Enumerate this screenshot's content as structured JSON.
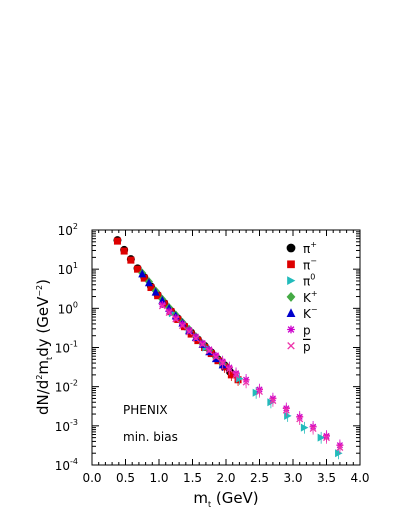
{
  "chart_data": {
    "type": "scatter",
    "title": "",
    "xlabel_main": "m",
    "xlabel_sub": "t",
    "xlabel_unit": " (GeV)",
    "ylabel_base": "dN/d",
    "ylabel_sup": "2",
    "ylabel_mid": "m",
    "ylabel_sub": "t",
    "ylabel_dy": "dy (GeV",
    "ylabel_exp": "−2",
    "ylabel_end": ")",
    "x_log": false,
    "y_log": true,
    "xlim": [
      0.0,
      4.0
    ],
    "ylim": [
      0.0001,
      100
    ],
    "x_ticks": [
      "0.0",
      "0.5",
      "1.0",
      "1.5",
      "2.0",
      "2.5",
      "3.0",
      "3.5",
      "4.0"
    ],
    "y_ticks": [
      {
        "base": "10",
        "exp": "2",
        "value": 100
      },
      {
        "base": "10",
        "exp": "1",
        "value": 10
      },
      {
        "base": "10",
        "exp": "0",
        "value": 1
      },
      {
        "base": "10",
        "exp": "-1",
        "value": 0.1
      },
      {
        "base": "10",
        "exp": "-2",
        "value": 0.01
      },
      {
        "base": "10",
        "exp": "-3",
        "value": 0.001
      },
      {
        "base": "10",
        "exp": "-4",
        "value": 0.0001
      }
    ],
    "annotations": [
      "PHENIX",
      "min. bias"
    ],
    "legend_position": "top-right",
    "series": [
      {
        "name": "π",
        "name_sup": "+",
        "marker": "circle",
        "color": "#000000",
        "x": [
          0.38,
          0.48,
          0.58,
          0.68,
          0.78,
          0.88,
          0.98,
          1.08,
          1.18,
          1.28,
          1.38,
          1.48,
          1.58,
          1.68,
          1.78,
          1.88,
          1.98,
          2.06
        ],
        "y": [
          55,
          31,
          18,
          10.5,
          6.2,
          3.6,
          2.2,
          1.35,
          0.85,
          0.55,
          0.35,
          0.24,
          0.16,
          0.11,
          0.075,
          0.05,
          0.035,
          0.024
        ]
      },
      {
        "name": "π",
        "name_sup": "−",
        "marker": "square",
        "color": "#dd0000",
        "x": [
          0.38,
          0.48,
          0.58,
          0.68,
          0.78,
          0.88,
          0.98,
          1.08,
          1.18,
          1.28,
          1.38,
          1.48,
          1.58,
          1.68,
          1.78,
          1.88,
          1.98,
          2.08,
          2.18
        ],
        "y": [
          52,
          29,
          17,
          10,
          5.9,
          3.4,
          2.1,
          1.3,
          0.82,
          0.52,
          0.34,
          0.22,
          0.15,
          0.1,
          0.07,
          0.046,
          0.032,
          0.02,
          0.015
        ]
      },
      {
        "name": "π",
        "name_sup": "0",
        "marker": "triangle-right",
        "color": "#22bbbb",
        "x": [
          1.2,
          1.45,
          1.7,
          1.95,
          2.2,
          2.45,
          2.67,
          2.92,
          3.17,
          3.42,
          3.68
        ],
        "y": [
          0.75,
          0.26,
          0.1,
          0.04,
          0.016,
          0.007,
          0.004,
          0.0018,
          0.0009,
          0.0005,
          0.0002
        ]
      },
      {
        "name": "K",
        "name_sup": "+",
        "marker": "diamond",
        "color": "#44aa44",
        "x": [
          0.75,
          0.85,
          0.95,
          1.05,
          1.15,
          1.25,
          1.35,
          1.45,
          1.55,
          1.65,
          1.75,
          1.85,
          1.95
        ],
        "y": [
          8,
          4.8,
          2.8,
          1.7,
          1.05,
          0.68,
          0.44,
          0.29,
          0.19,
          0.125,
          0.083,
          0.055,
          0.038
        ]
      },
      {
        "name": "K",
        "name_sup": "−",
        "marker": "triangle-up",
        "color": "#0000cc",
        "x": [
          0.75,
          0.85,
          0.95,
          1.05,
          1.15,
          1.25,
          1.35,
          1.45,
          1.55,
          1.65,
          1.75,
          1.85,
          1.95
        ],
        "y": [
          7.6,
          4.5,
          2.6,
          1.6,
          1.0,
          0.64,
          0.42,
          0.27,
          0.18,
          0.12,
          0.078,
          0.052,
          0.036
        ]
      },
      {
        "name": "p",
        "name_sup": "",
        "marker": "asterisk",
        "color": "#cc00cc",
        "x": [
          1.05,
          1.15,
          1.25,
          1.35,
          1.45,
          1.55,
          1.65,
          1.75,
          1.85,
          1.95,
          2.05,
          2.15,
          2.3,
          2.5,
          2.7,
          2.9,
          3.1,
          3.3,
          3.5,
          3.7
        ],
        "y": [
          1.25,
          0.85,
          0.58,
          0.4,
          0.28,
          0.19,
          0.13,
          0.09,
          0.063,
          0.044,
          0.031,
          0.022,
          0.015,
          0.0085,
          0.005,
          0.0028,
          0.0017,
          0.00095,
          0.00055,
          0.00032
        ]
      },
      {
        "name": "p",
        "name_sup": "",
        "name_bar": true,
        "marker": "cross",
        "color": "#ee33aa",
        "x": [
          1.05,
          1.15,
          1.25,
          1.35,
          1.45,
          1.55,
          1.65,
          1.75,
          1.85,
          1.95,
          2.05,
          2.15,
          2.3,
          2.5,
          2.7,
          2.9,
          3.1,
          3.3,
          3.5,
          3.7
        ],
        "y": [
          1.15,
          0.78,
          0.53,
          0.36,
          0.25,
          0.17,
          0.12,
          0.082,
          0.057,
          0.04,
          0.028,
          0.02,
          0.013,
          0.0075,
          0.0044,
          0.0025,
          0.0015,
          0.00085,
          0.0005,
          0.00028
        ]
      }
    ]
  }
}
